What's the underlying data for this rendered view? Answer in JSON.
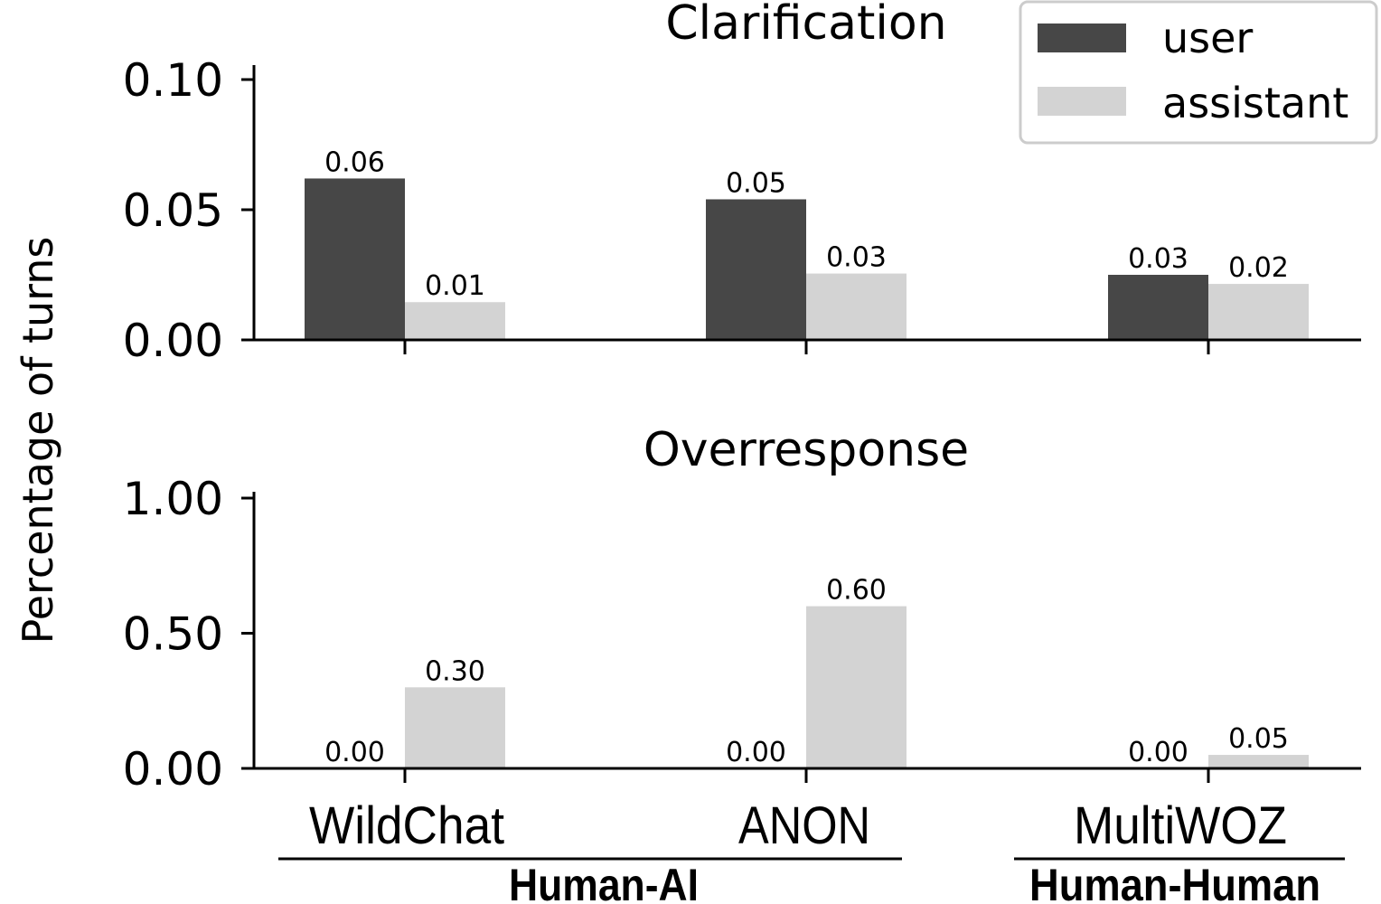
{
  "chart_data": [
    {
      "type": "bar",
      "title": "Clarification",
      "categories": [
        "WildChat",
        "ANON",
        "MultiWOZ"
      ],
      "ylim": [
        0,
        0.1
      ],
      "yticks": [
        0.0,
        0.05,
        0.1
      ],
      "ytick_labels": [
        "0.00",
        "0.05",
        "0.10"
      ],
      "series": [
        {
          "name": "user",
          "values": [
            0.062,
            0.054,
            0.025
          ],
          "labels": [
            "0.06",
            "0.05",
            "0.03"
          ]
        },
        {
          "name": "assistant",
          "values": [
            0.0145,
            0.0255,
            0.0215
          ],
          "labels": [
            "0.01",
            "0.03",
            "0.02"
          ]
        }
      ]
    },
    {
      "type": "bar",
      "title": "Overresponse",
      "categories": [
        "WildChat",
        "ANON",
        "MultiWOZ"
      ],
      "ylim": [
        0,
        1.0
      ],
      "yticks": [
        0.0,
        0.5,
        1.0
      ],
      "ytick_labels": [
        "0.00",
        "0.50",
        "1.00"
      ],
      "series": [
        {
          "name": "user",
          "values": [
            0.0,
            0.0,
            0.0
          ],
          "labels": [
            "0.00",
            "0.00",
            "0.00"
          ]
        },
        {
          "name": "assistant",
          "values": [
            0.3,
            0.6,
            0.05
          ],
          "labels": [
            "0.30",
            "0.60",
            "0.05"
          ]
        }
      ]
    }
  ],
  "shared": {
    "ylabel": "Percentage of turns",
    "xtick_labels": [
      "WildChat",
      "ANON",
      "MultiWOZ"
    ],
    "groups": [
      "Human-AI",
      "Human-Human"
    ],
    "legend": {
      "position": "top-right",
      "entries": [
        {
          "name": "user",
          "color": "#474747"
        },
        {
          "name": "assistant",
          "color": "#d3d3d3"
        }
      ]
    }
  },
  "colors": {
    "user": "#474747",
    "assistant": "#d3d3d3",
    "axis": "#000000"
  }
}
